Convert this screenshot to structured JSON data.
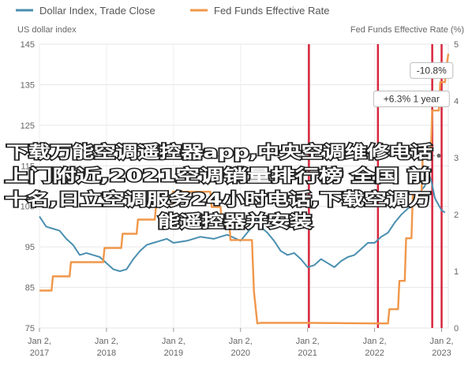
{
  "chart_data": {
    "type": "line",
    "legend": {
      "placement": "top-left",
      "items": [
        {
          "label": "Dollar Index, Trade Close",
          "color": "#4a8fb0"
        },
        {
          "label": "Fed Funds Effective Rate",
          "color": "#f0974a"
        }
      ]
    },
    "left_axis": {
      "label": "US dollar index",
      "range": [
        75,
        145
      ],
      "ticks": [
        "75",
        "85",
        "95",
        "105",
        "115",
        "125",
        "135",
        "145"
      ]
    },
    "right_axis": {
      "label": "Fed Funds Effective Rate (%)",
      "range": [
        0,
        5
      ],
      "ticks": [
        "0",
        "1",
        "2",
        "3",
        "4",
        "5"
      ]
    },
    "x_axis": {
      "range": [
        2017.0,
        2023.1
      ],
      "ticks": [
        {
          "value": 2017,
          "line1": "Jan 2,",
          "line2": "2017"
        },
        {
          "value": 2018,
          "line1": "Jan 2,",
          "line2": "2018"
        },
        {
          "value": 2019,
          "line1": "Jan 2,",
          "line2": "2019"
        },
        {
          "value": 2020,
          "line1": "Jan 2,",
          "line2": "2020"
        },
        {
          "value": 2021,
          "line1": "Jan 2,",
          "line2": "2021"
        },
        {
          "value": 2022,
          "line1": "Jan 2,",
          "line2": "2022"
        },
        {
          "value": 2023,
          "line1": "Jan 2,",
          "line2": "2023"
        }
      ]
    },
    "grid": true,
    "series": [
      {
        "name": "Dollar Index, Trade Close",
        "axis": "left",
        "color": "#4a8fb0",
        "x": [
          2017.0,
          2017.1,
          2017.2,
          2017.3,
          2017.4,
          2017.5,
          2017.6,
          2017.7,
          2017.8,
          2017.9,
          2018.0,
          2018.1,
          2018.2,
          2018.3,
          2018.4,
          2018.5,
          2018.6,
          2018.7,
          2018.8,
          2018.9,
          2019.0,
          2019.2,
          2019.4,
          2019.6,
          2019.8,
          2020.0,
          2020.15,
          2020.22,
          2020.3,
          2020.4,
          2020.5,
          2020.6,
          2020.7,
          2020.8,
          2020.9,
          2021.0,
          2021.1,
          2021.2,
          2021.3,
          2021.4,
          2021.5,
          2021.6,
          2021.7,
          2021.8,
          2021.9,
          2022.0,
          2022.1,
          2022.2,
          2022.3,
          2022.4,
          2022.5,
          2022.6,
          2022.7,
          2022.75,
          2022.8,
          2022.85,
          2022.9,
          2023.0,
          2023.05
        ],
        "y": [
          102.5,
          100.0,
          99.5,
          99.0,
          97.0,
          95.5,
          93.0,
          93.5,
          93.0,
          92.5,
          91.0,
          89.5,
          89.0,
          89.5,
          92.0,
          94.0,
          95.5,
          96.0,
          96.5,
          97.0,
          96.0,
          96.5,
          97.5,
          97.0,
          98.0,
          96.5,
          99.5,
          103.0,
          100.0,
          98.5,
          96.5,
          94.0,
          93.0,
          93.5,
          92.0,
          90.0,
          90.5,
          92.0,
          91.0,
          90.0,
          91.5,
          92.5,
          93.0,
          94.5,
          96.0,
          96.0,
          97.5,
          98.5,
          101.0,
          103.0,
          104.5,
          106.0,
          109.0,
          110.0,
          113.5,
          111.0,
          107.0,
          104.0,
          103.5
        ]
      },
      {
        "name": "Fed Funds Effective Rate",
        "axis": "right",
        "color": "#f0974a",
        "x": [
          2017.0,
          2017.18,
          2017.2,
          2017.45,
          2017.47,
          2017.95,
          2017.97,
          2018.22,
          2018.24,
          2018.45,
          2018.47,
          2018.72,
          2018.74,
          2018.97,
          2018.99,
          2019.55,
          2019.57,
          2019.7,
          2019.72,
          2019.83,
          2019.85,
          2020.17,
          2020.2,
          2020.25,
          2020.3,
          2021.0,
          2022.0,
          2022.2,
          2022.22,
          2022.35,
          2022.37,
          2022.45,
          2022.47,
          2022.55,
          2022.57,
          2022.7,
          2022.72,
          2022.84,
          2022.86,
          2022.96,
          2022.98,
          2023.05,
          2023.07,
          2023.1
        ],
        "y": [
          0.66,
          0.66,
          0.91,
          0.91,
          1.16,
          1.16,
          1.41,
          1.41,
          1.66,
          1.66,
          1.91,
          1.91,
          2.16,
          2.16,
          2.4,
          2.4,
          2.13,
          2.13,
          1.9,
          1.9,
          1.55,
          1.55,
          0.65,
          0.08,
          0.09,
          0.09,
          0.08,
          0.08,
          0.33,
          0.33,
          0.83,
          0.83,
          1.58,
          1.58,
          2.33,
          2.33,
          3.08,
          3.08,
          3.83,
          3.83,
          4.33,
          4.33,
          4.58,
          4.83
        ]
      }
    ],
    "vertical_markers": [
      {
        "x": 2021.02
      },
      {
        "x": 2022.05
      },
      {
        "x": 2022.86
      },
      {
        "x": 2023.0
      }
    ],
    "callouts": [
      {
        "text": "-10.8%",
        "x": 2022.85,
        "y": 138.5
      },
      {
        "text": "+6.3% 1 year",
        "x": 2022.55,
        "y": 131.5
      }
    ],
    "dashed_reference": {
      "y": 117.5
    }
  },
  "overlay_lines": [
    "下载万能空调遥控器app,中央空调维修电话",
    "上门附近,2021空调销量排行榜 全国 前",
    "十名,日立空调服务24小时电话,下载空调万",
    "能遥控器并安装"
  ]
}
